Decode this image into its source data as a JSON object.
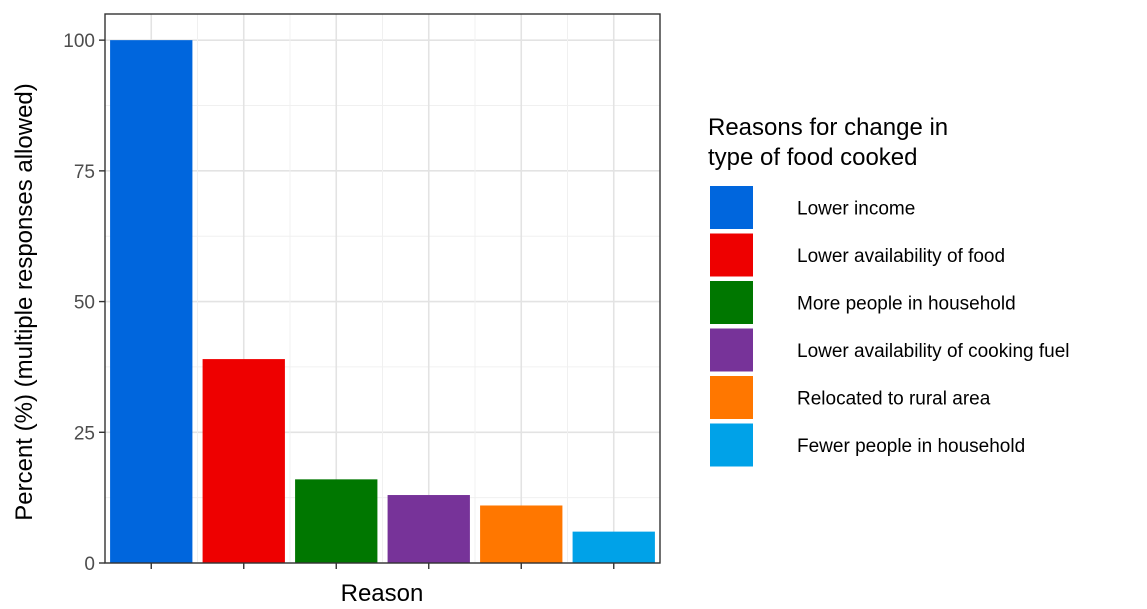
{
  "chart_data": {
    "type": "bar",
    "title": "",
    "xlabel": "Reason",
    "ylabel": "Percent (%) (multiple responses allowed)",
    "ylim": [
      0,
      105
    ],
    "yticks": [
      0,
      25,
      50,
      75,
      100
    ],
    "grid": true,
    "legend_position": "right",
    "legend_title_lines": [
      "Reasons for change in",
      "type of food cooked"
    ],
    "categories": [
      "Lower income",
      "Lower availability of food",
      "More people in household",
      "Lower availability of cooking fuel",
      "Relocated to rural area",
      "Fewer people in household"
    ],
    "values": [
      100,
      39,
      16,
      13,
      11,
      6
    ],
    "colors": [
      "#0066dd",
      "#ee0000",
      "#007700",
      "#773399",
      "#ff7700",
      "#00a2e8"
    ]
  }
}
